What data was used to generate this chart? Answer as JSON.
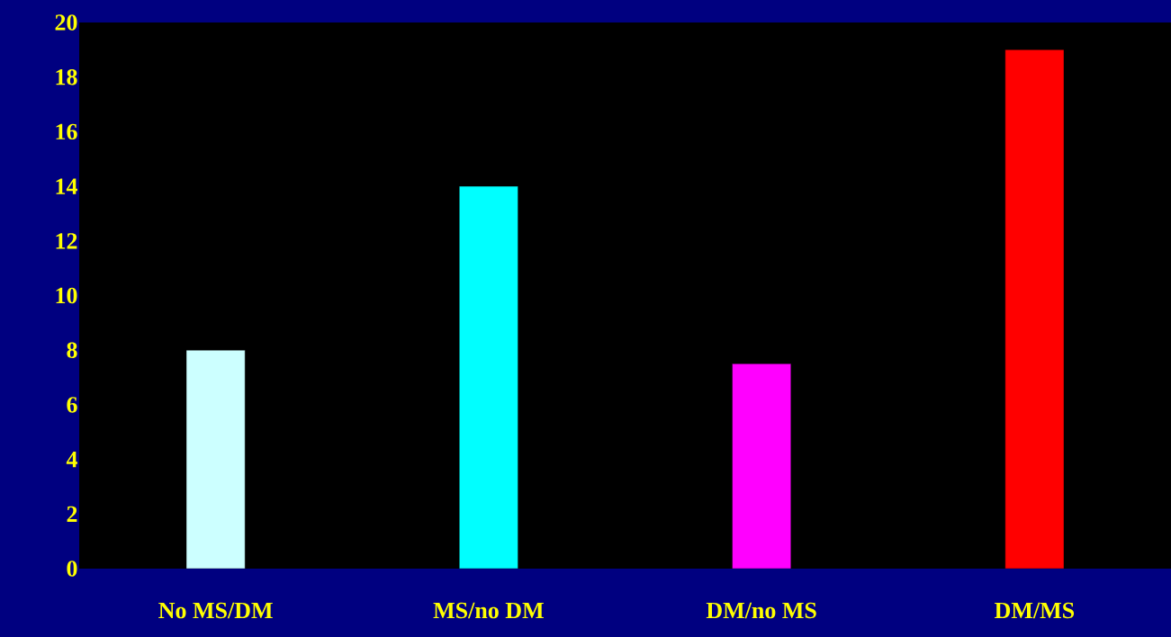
{
  "chart_data": {
    "type": "bar",
    "categories": [
      "No MS/DM",
      "MS/no DM",
      "DM/no MS",
      "DM/MS"
    ],
    "values": [
      8,
      14,
      7.5,
      19
    ],
    "colors": [
      "#ccffff",
      "#00ffff",
      "#ff00ff",
      "#ff0000"
    ],
    "ylim": [
      0,
      20
    ],
    "yticks": [
      0,
      2,
      4,
      6,
      8,
      10,
      12,
      14,
      16,
      18,
      20
    ]
  }
}
